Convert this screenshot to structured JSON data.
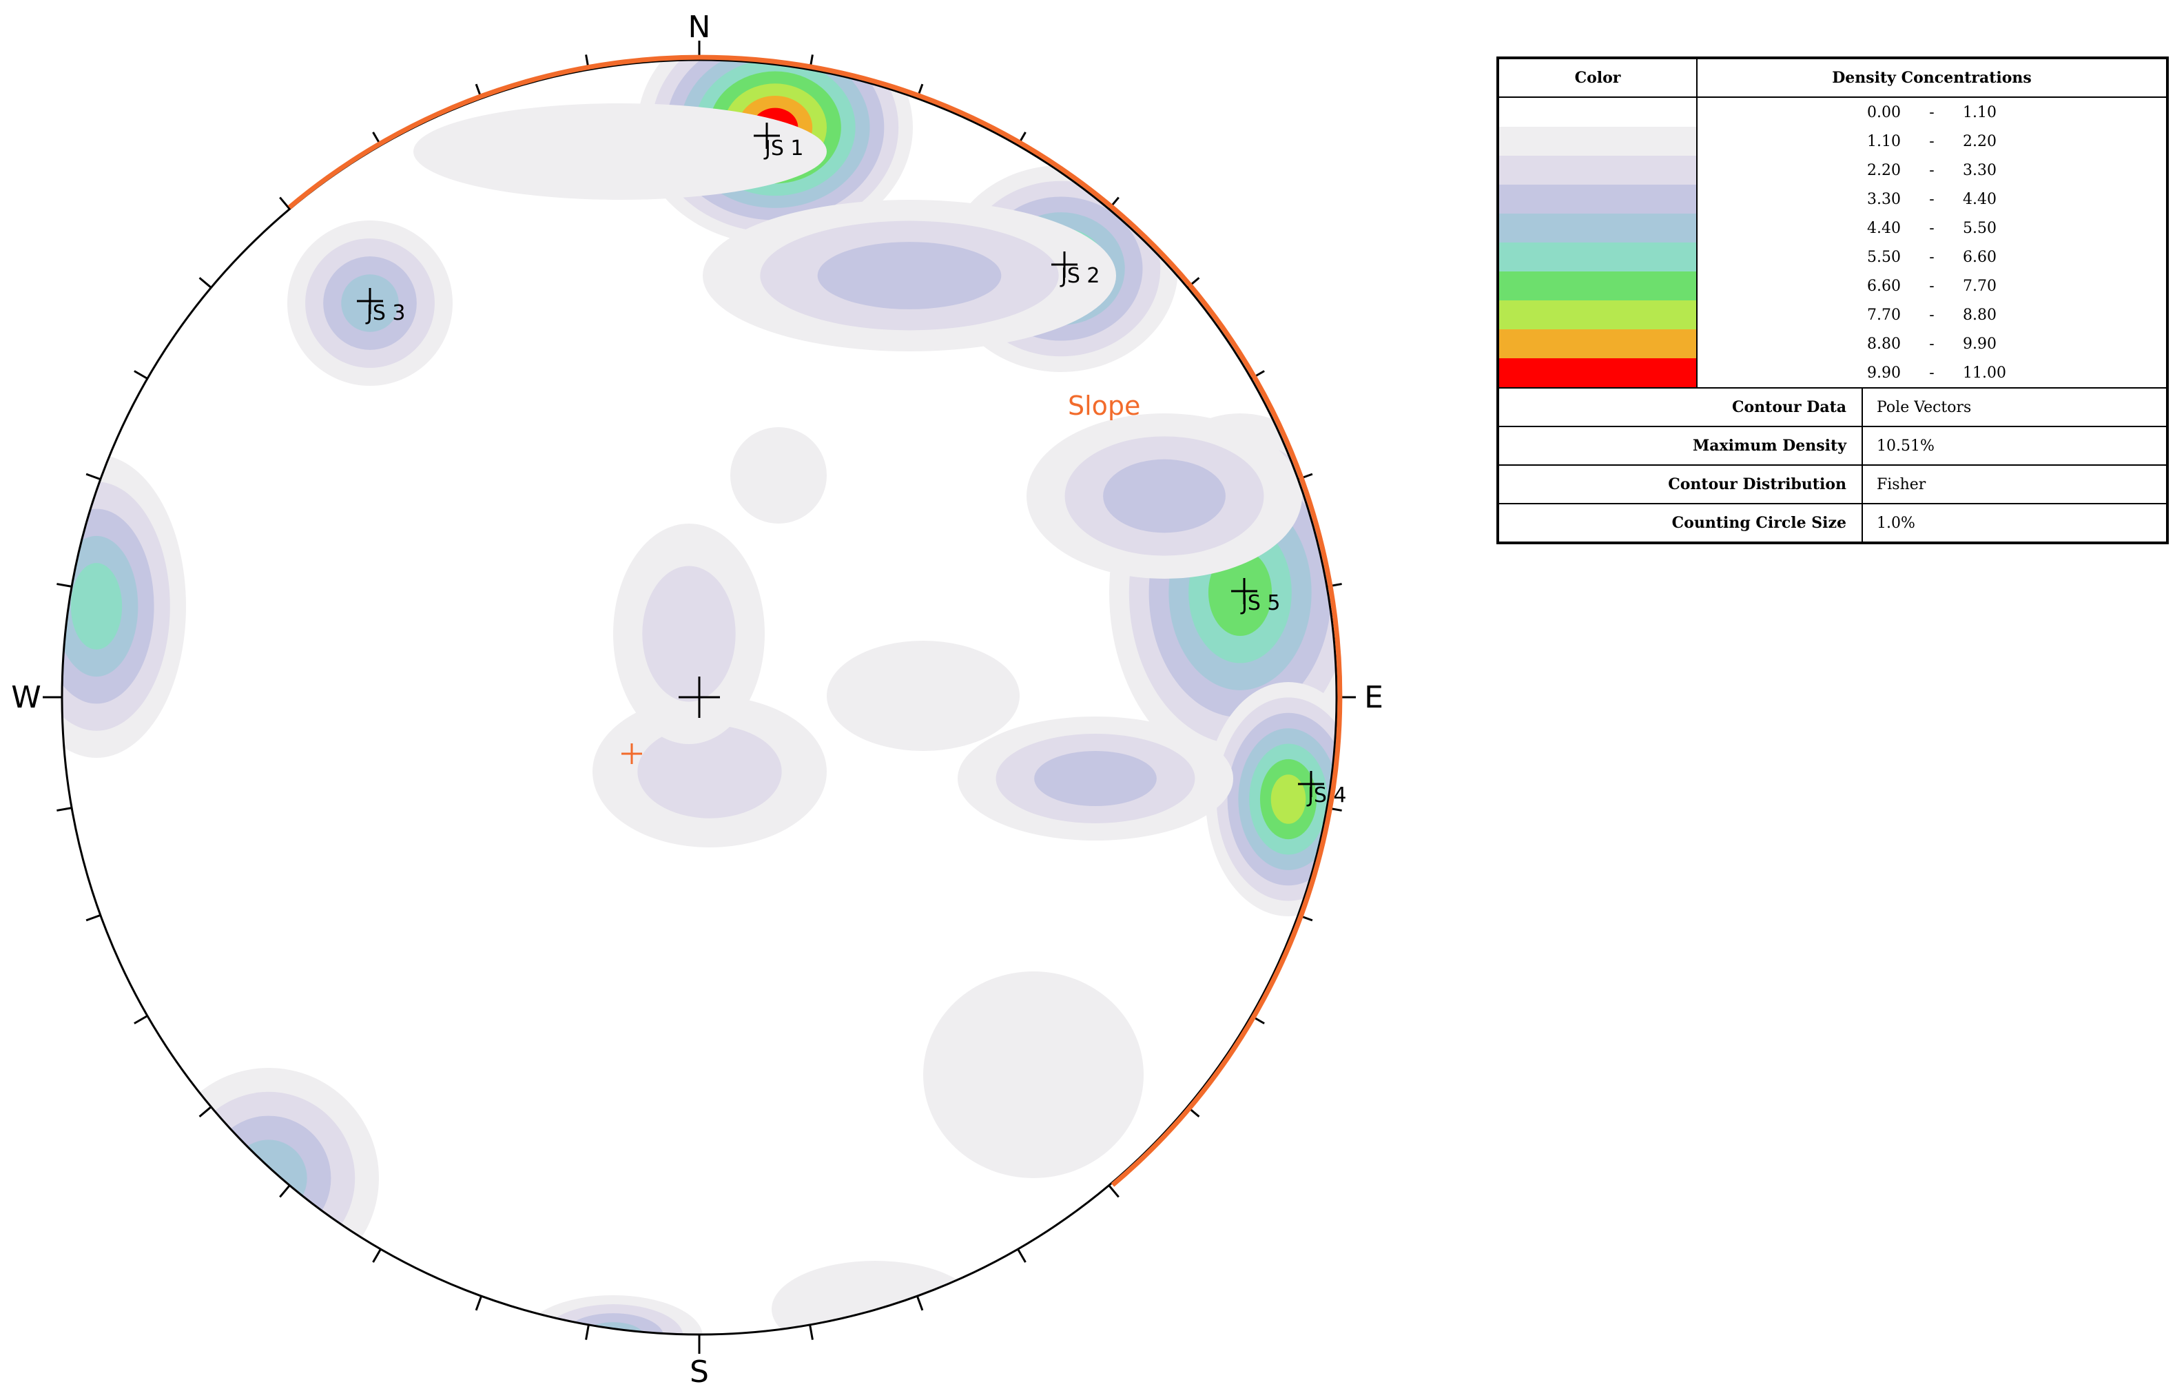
{
  "compass": {
    "north": "N",
    "south": "S",
    "east": "E",
    "west": "W"
  },
  "joint_sets": [
    {
      "label": "JS 1",
      "trend_deg": 6,
      "plunge_deg": 69
    },
    {
      "label": "JS 2",
      "trend_deg": 45,
      "plunge_deg": 53
    },
    {
      "label": "JS 3",
      "trend_deg": 315,
      "plunge_deg": 44
    },
    {
      "label": "JS 4",
      "trend_deg": 98,
      "plunge_deg": 2
    },
    {
      "label": "JS 5",
      "trend_deg": 83,
      "plunge_deg": 17
    }
  ],
  "slope": {
    "label": "Slope",
    "color": "#f26b2b"
  },
  "contour_colors": [
    "#ffffff",
    "#efeef0",
    "#e0dcea",
    "#c5c6e2",
    "#a8c8da",
    "#8edcc6",
    "#6ddf6d",
    "#b6e84e",
    "#f2ad2a",
    "#ff0000"
  ],
  "legend": {
    "color_header": "Color",
    "density_header": "Density Concentrations",
    "ranges": [
      {
        "from": "0.00",
        "sep": "-",
        "to": "1.10"
      },
      {
        "from": "1.10",
        "sep": "-",
        "to": "2.20"
      },
      {
        "from": "2.20",
        "sep": "-",
        "to": "3.30"
      },
      {
        "from": "3.30",
        "sep": "-",
        "to": "4.40"
      },
      {
        "from": "4.40",
        "sep": "-",
        "to": "5.50"
      },
      {
        "from": "5.50",
        "sep": "-",
        "to": "6.60"
      },
      {
        "from": "6.60",
        "sep": "-",
        "to": "7.70"
      },
      {
        "from": "7.70",
        "sep": "-",
        "to": "8.80"
      },
      {
        "from": "8.80",
        "sep": "-",
        "to": "9.90"
      },
      {
        "from": "9.90",
        "sep": "-",
        "to": "11.00"
      }
    ],
    "info": [
      {
        "label": "Contour Data",
        "value": "Pole Vectors"
      },
      {
        "label": "Maximum Density",
        "value": "10.51%"
      },
      {
        "label": "Contour Distribution",
        "value": "Fisher"
      },
      {
        "label": "Counting Circle Size",
        "value": "1.0%"
      }
    ]
  }
}
